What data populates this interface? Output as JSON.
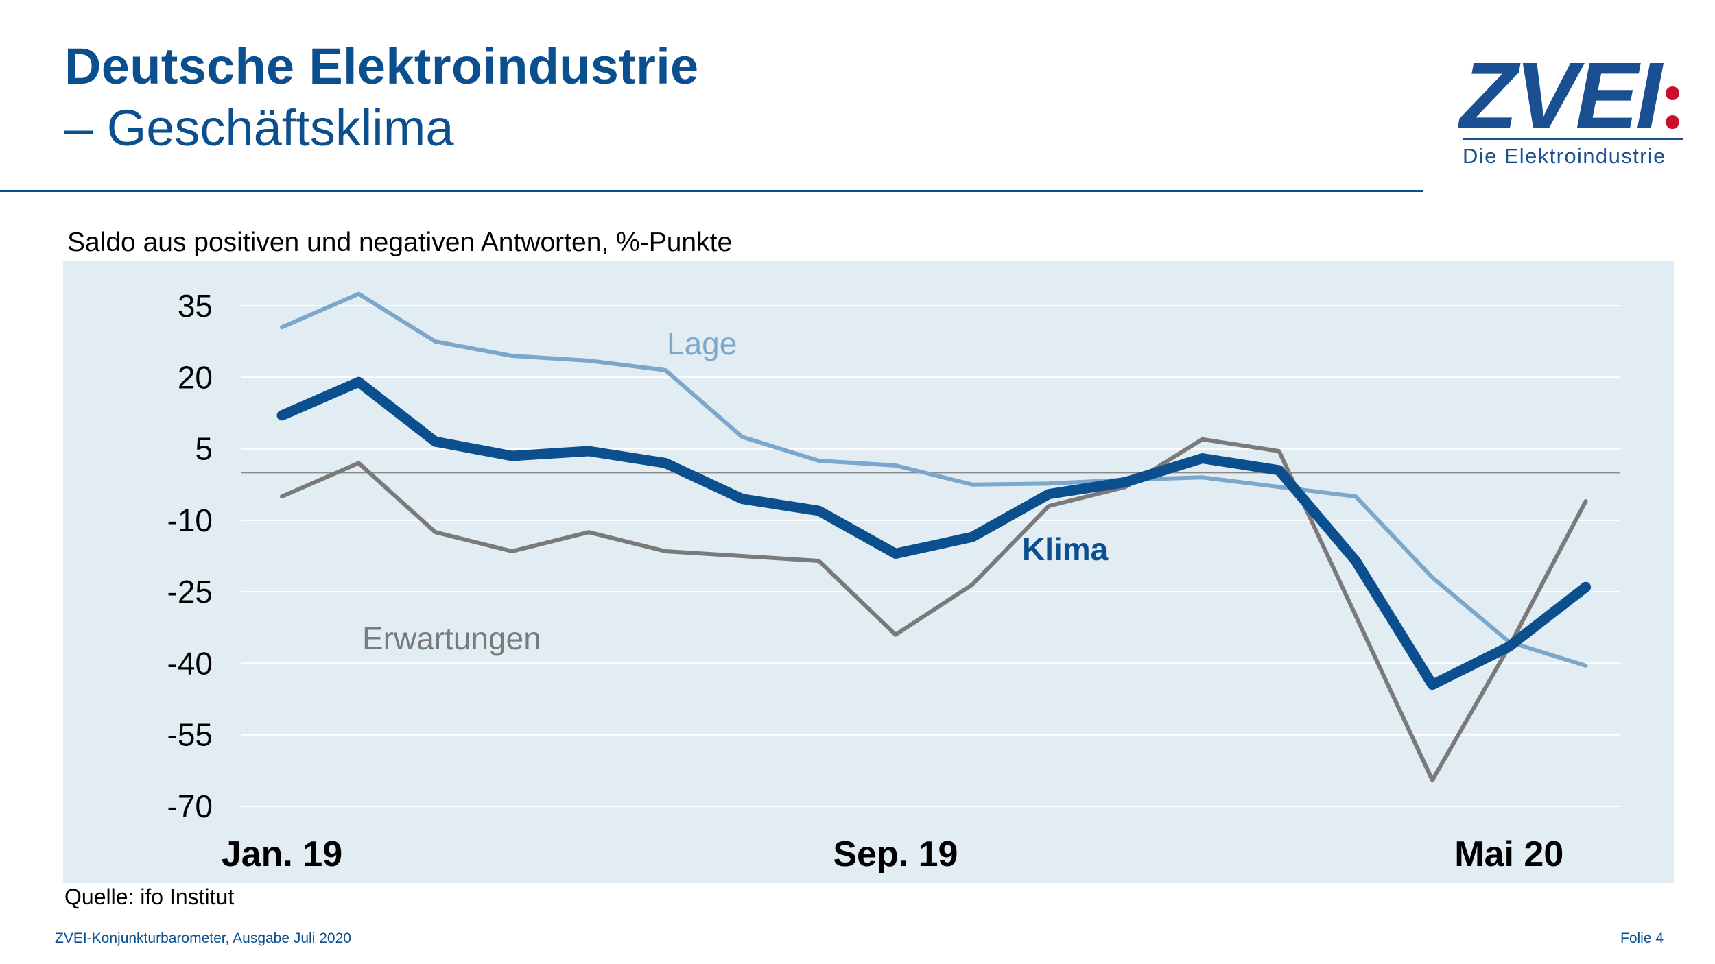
{
  "header": {
    "title_line1": "Deutsche Elektroindustrie",
    "title_line2": "– Geschäftsklima"
  },
  "logo": {
    "mark": "ZVEI",
    "subtitle": "Die Elektroindustrie",
    "brand_color": "#1a4f91",
    "accent_color": "#c8102e"
  },
  "chart_data": {
    "type": "line",
    "subtitle": "Saldo aus positiven und negativen Antworten, %-Punkte",
    "ylim": [
      -70,
      35
    ],
    "yticks": [
      35,
      20,
      5,
      -10,
      -25,
      -40,
      -55,
      -70
    ],
    "zero_line": 0,
    "x_index": [
      0,
      1,
      2,
      3,
      4,
      5,
      6,
      7,
      8,
      9,
      10,
      11,
      12,
      13,
      14,
      15,
      16,
      17
    ],
    "x_tick_labels": [
      {
        "index": 0,
        "label": "Jan. 19"
      },
      {
        "index": 8,
        "label": "Sep. 19"
      },
      {
        "index": 16,
        "label": "Mai 20"
      }
    ],
    "series": [
      {
        "name": "Lage",
        "color": "#7ba7cc",
        "values": [
          30.5,
          37.5,
          27.5,
          24.5,
          23.5,
          21.5,
          7.5,
          2.5,
          1.5,
          -2.5,
          -2.3,
          -1.5,
          -1.0,
          -3.0,
          -5.0,
          -22.0,
          -35.5,
          -40.5
        ]
      },
      {
        "name": "Klima",
        "color": "#0b4f8e",
        "values": [
          12.0,
          19.0,
          6.5,
          3.5,
          4.5,
          2.0,
          -5.5,
          -8.0,
          -17.0,
          -13.5,
          -4.5,
          -2.0,
          3.0,
          0.5,
          -18.5,
          -44.5,
          -36.5,
          -24.0
        ]
      },
      {
        "name": "Erwartungen",
        "color": "#7a7a7a",
        "values": [
          -5.0,
          2.0,
          -12.5,
          -16.5,
          -12.5,
          -16.5,
          -17.5,
          -18.5,
          -34.0,
          -23.5,
          -7.0,
          -3.0,
          7.0,
          4.5,
          -30.0,
          -64.5,
          -36.5,
          -6.0
        ]
      }
    ],
    "annotations": [
      {
        "text": "Lage",
        "series": "Lage"
      },
      {
        "text": "Klima",
        "series": "Klima"
      },
      {
        "text": "Erwartungen",
        "series": "Erwartungen"
      }
    ],
    "source": "Quelle: ifo Institut"
  },
  "footer": {
    "publication": "ZVEI-Konjunkturbarometer, Ausgabe Juli 2020",
    "slide": "Folie 4"
  }
}
